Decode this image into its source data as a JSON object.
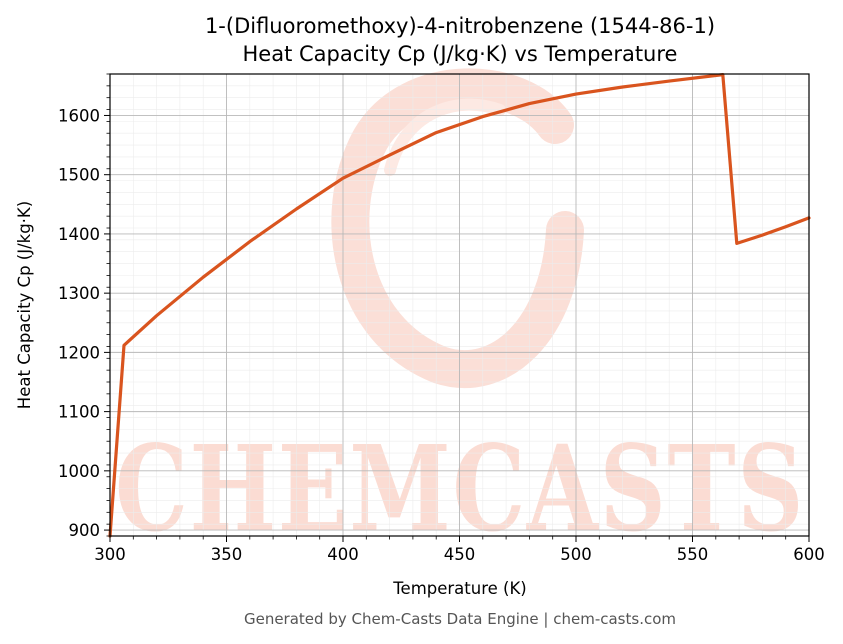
{
  "chart_data": {
    "type": "line",
    "title_line1": "1-(Difluoromethoxy)-4-nitrobenzene (1544-86-1)",
    "title_line2": "Heat Capacity Cp (J/kg·K) vs Temperature",
    "xlabel": "Temperature (K)",
    "ylabel": "Heat Capacity Cp (J/kg·K)",
    "xlim": [
      300,
      600
    ],
    "ylim": [
      890,
      1670
    ],
    "xticks": [
      300,
      350,
      400,
      450,
      500,
      550,
      600
    ],
    "yticks": [
      900,
      1000,
      1100,
      1200,
      1300,
      1400,
      1500,
      1600
    ],
    "grid": true,
    "series": [
      {
        "color": "#d9541e",
        "x": [
          300,
          306,
          320,
          340,
          360,
          380,
          400,
          420,
          440,
          460,
          480,
          500,
          520,
          540,
          563,
          569,
          580,
          590,
          600
        ],
        "y": [
          890,
          1212,
          1262,
          1327,
          1387,
          1442,
          1494,
          1533,
          1571,
          1598,
          1620,
          1636,
          1648,
          1658,
          1669,
          1384,
          1398,
          1412,
          1427
        ]
      }
    ]
  },
  "watermark": {
    "text": "CHEMCASTS",
    "color": "#fbdcd3"
  },
  "footer": {
    "text": "Generated by Chem-Casts Data Engine | chem-casts.com"
  }
}
